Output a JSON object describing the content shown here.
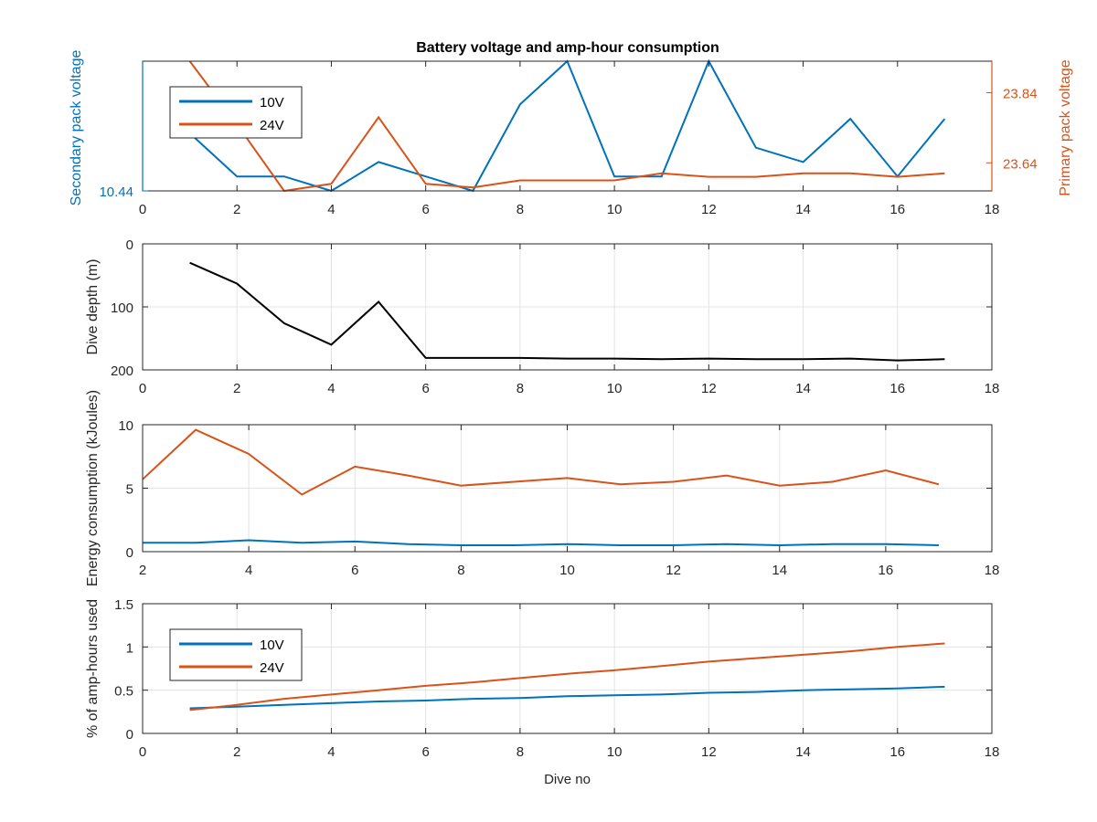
{
  "figure": {
    "title": "Battery voltage and amp-hour consumption"
  },
  "colors": {
    "blue": "#0072BD",
    "orange": "#D95319",
    "black": "#000000",
    "grid": "#e3e3e3",
    "axis": "#262626"
  },
  "chart_data": [
    {
      "type": "line",
      "title": "Battery voltage and amp-hour consumption",
      "xlabel": "",
      "xlim": [
        0,
        18
      ],
      "xticks": [
        "0",
        "2",
        "4",
        "6",
        "8",
        "10",
        "12",
        "14",
        "16",
        "18"
      ],
      "grid": false,
      "legend": {
        "position": "top-left",
        "entries": [
          "10V",
          "24V"
        ]
      },
      "y_left": {
        "label": "Secondary pack voltage",
        "ticks": [
          "10.44"
        ],
        "range": [
          10.44,
          10.62
        ]
      },
      "y_right": {
        "label": "Primary pack voltage",
        "ticks": [
          "23.84",
          "23.64"
        ],
        "range": [
          23.56,
          23.93
        ]
      },
      "series": [
        {
          "name": "10V",
          "axis": "left",
          "x": [
            1,
            2,
            3,
            4,
            5,
            6,
            7,
            8,
            9,
            10,
            11,
            12,
            13,
            14,
            15,
            16,
            17
          ],
          "values": [
            10.52,
            10.46,
            10.46,
            10.44,
            10.48,
            10.46,
            10.44,
            10.56,
            10.62,
            10.46,
            10.46,
            10.62,
            10.5,
            10.48,
            10.54,
            10.46,
            10.54
          ]
        },
        {
          "name": "24V",
          "axis": "right",
          "x": [
            1,
            2,
            3,
            4,
            5,
            6,
            7,
            8,
            9,
            10,
            11,
            12,
            13,
            14,
            15,
            16,
            17
          ],
          "values": [
            23.93,
            23.75,
            23.56,
            23.58,
            23.77,
            23.58,
            23.57,
            23.59,
            23.59,
            23.59,
            23.61,
            23.6,
            23.6,
            23.61,
            23.61,
            23.6,
            23.61
          ]
        }
      ]
    },
    {
      "type": "line",
      "xlabel": "",
      "ylabel": "Dive depth (m)",
      "xlim": [
        0,
        18
      ],
      "ylim": [
        0,
        200
      ],
      "y_reversed": true,
      "xticks": [
        "0",
        "2",
        "4",
        "6",
        "8",
        "10",
        "12",
        "14",
        "16",
        "18"
      ],
      "yticks": [
        "0",
        "100",
        "200"
      ],
      "grid": true,
      "series": [
        {
          "x": [
            1,
            2,
            3,
            4,
            5,
            6,
            7,
            8,
            9,
            10,
            11,
            12,
            13,
            14,
            15,
            16,
            17
          ],
          "values": [
            30,
            63,
            126,
            160,
            92,
            181,
            181,
            181,
            182,
            182,
            183,
            182,
            183,
            183,
            182,
            185,
            183
          ]
        }
      ]
    },
    {
      "type": "line",
      "xlabel": "",
      "ylabel": "Energy consumption (kJoules)",
      "xlim": [
        2,
        18
      ],
      "ylim": [
        0,
        10
      ],
      "xticks": [
        "2",
        "4",
        "6",
        "8",
        "10",
        "12",
        "14",
        "16",
        "18"
      ],
      "yticks": [
        "0",
        "5",
        "10"
      ],
      "grid": true,
      "series": [
        {
          "x": [
            2,
            3,
            4,
            5,
            6,
            7,
            8,
            9,
            10,
            11,
            12,
            13,
            14,
            15,
            16,
            17
          ],
          "values": [
            0.7,
            0.7,
            0.9,
            0.7,
            0.8,
            0.6,
            0.5,
            0.5,
            0.6,
            0.5,
            0.5,
            0.6,
            0.5,
            0.6,
            0.6,
            0.5
          ]
        },
        {
          "x": [
            2,
            3,
            4,
            5,
            6,
            7,
            8,
            9,
            10,
            11,
            12,
            13,
            14,
            15,
            16,
            17
          ],
          "values": [
            5.7,
            9.6,
            7.7,
            4.5,
            6.7,
            6.0,
            5.2,
            5.5,
            5.8,
            5.3,
            5.5,
            6.0,
            5.2,
            5.5,
            6.4,
            5.3
          ]
        }
      ]
    },
    {
      "type": "line",
      "xlabel": "Dive no",
      "ylabel": "% of amp-hours used",
      "xlim": [
        0,
        18
      ],
      "ylim": [
        0,
        1.5
      ],
      "xticks": [
        "0",
        "2",
        "4",
        "6",
        "8",
        "10",
        "12",
        "14",
        "16",
        "18"
      ],
      "yticks": [
        "0",
        "0.5",
        "1",
        "1.5"
      ],
      "grid": true,
      "legend": {
        "position": "top-left",
        "entries": [
          "10V",
          "24V"
        ]
      },
      "series": [
        {
          "name": "10V",
          "x": [
            1,
            2,
            3,
            4,
            5,
            6,
            7,
            8,
            9,
            10,
            11,
            12,
            13,
            14,
            15,
            16,
            17
          ],
          "values": [
            0.29,
            0.31,
            0.33,
            0.35,
            0.37,
            0.38,
            0.4,
            0.41,
            0.43,
            0.44,
            0.45,
            0.47,
            0.48,
            0.5,
            0.51,
            0.52,
            0.54
          ]
        },
        {
          "name": "24V",
          "x": [
            1,
            2,
            3,
            4,
            5,
            6,
            7,
            8,
            9,
            10,
            11,
            12,
            13,
            14,
            15,
            16,
            17
          ],
          "values": [
            0.27,
            0.33,
            0.4,
            0.45,
            0.5,
            0.55,
            0.59,
            0.64,
            0.69,
            0.73,
            0.78,
            0.83,
            0.87,
            0.91,
            0.95,
            1.0,
            1.04
          ]
        }
      ]
    }
  ]
}
